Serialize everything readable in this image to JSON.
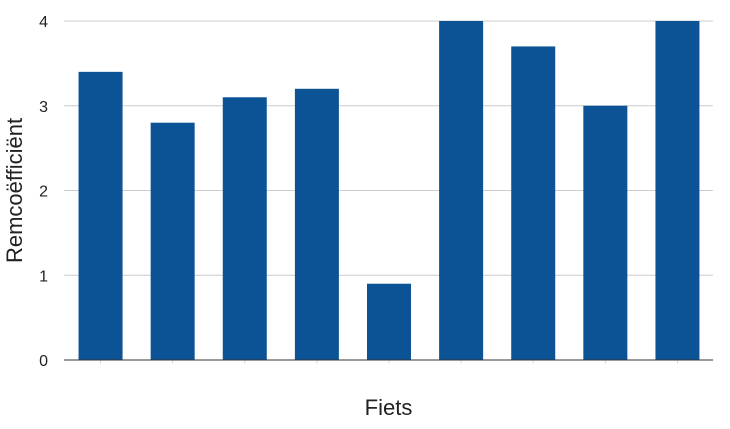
{
  "chart_data": {
    "type": "bar",
    "title": "",
    "xlabel": "Fiets",
    "ylabel": "Remcoëfficiënt",
    "categories": [
      "",
      "",
      "",
      "",
      "",
      "",
      "",
      "",
      ""
    ],
    "values": [
      3.4,
      2.8,
      3.1,
      3.2,
      0.9,
      4.0,
      3.7,
      3.0,
      4.0
    ],
    "ylim": [
      0,
      4
    ],
    "yticks": [
      "0",
      "1",
      "2",
      "3",
      "4"
    ],
    "grid": true,
    "legend": "none",
    "colors": {
      "bar": "#0b5394",
      "grid": "#cccccc",
      "axis": "#333333"
    }
  }
}
